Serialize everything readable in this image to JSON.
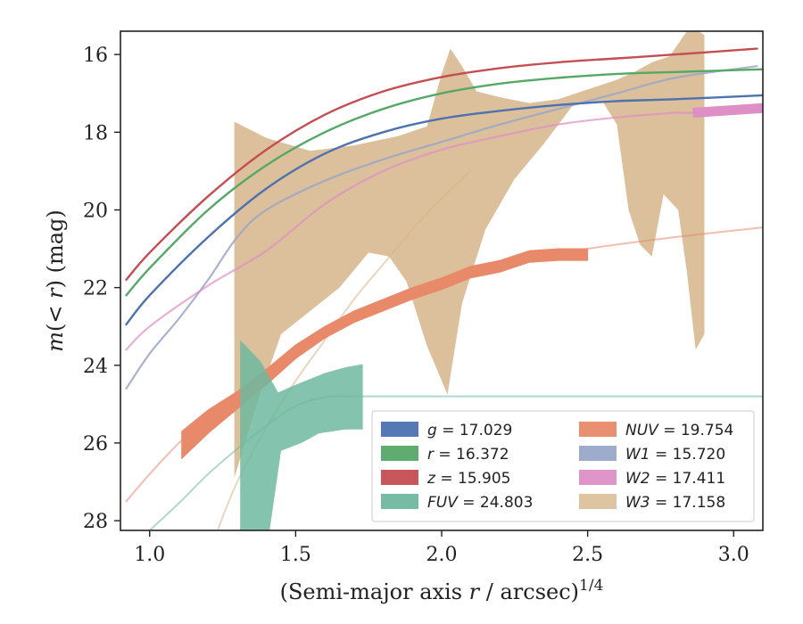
{
  "chart_data": {
    "type": "line",
    "xlabel": "(Semi-major axis r / arcsec)^1/4",
    "ylabel": "m(< r) (mag)",
    "xlim": [
      0.9,
      3.1
    ],
    "ylim": [
      28.25,
      15.4
    ],
    "y_inverted": true,
    "xticks": [
      "1.0",
      "1.5",
      "2.0",
      "2.5",
      "3.0"
    ],
    "yticks": [
      "16",
      "18",
      "20",
      "22",
      "24",
      "26",
      "28"
    ],
    "grid": false,
    "legend_position": "lower-right",
    "legend_columns": 2,
    "legend": [
      {
        "band": "g",
        "text": "= 17.029",
        "color": "#4c72b0",
        "italic": true
      },
      {
        "band": "r",
        "text": "= 16.372",
        "color": "#55a868",
        "italic": true
      },
      {
        "band": "z",
        "text": "= 15.905",
        "color": "#c44e52",
        "italic": true
      },
      {
        "band": "FUV",
        "text": "= 24.803",
        "color": "#6fb89f",
        "italic": true
      },
      {
        "band": "NUV",
        "text": "= 19.754",
        "color": "#e8896a",
        "italic": true
      },
      {
        "band": "W1",
        "text": "= 15.720",
        "color": "#9aa6c8",
        "italic": true
      },
      {
        "band": "W2",
        "text": "= 17.411",
        "color": "#dd8fc6",
        "italic": true
      },
      {
        "band": "W3",
        "text": "= 17.158",
        "color": "#d6b589",
        "italic": true
      }
    ],
    "series": [
      {
        "name": "W3",
        "color": "#d6b589",
        "band_upper": [
          [
            1.29,
            17.73
          ],
          [
            1.4,
            18.15
          ],
          [
            1.55,
            18.48
          ],
          [
            1.7,
            18.34
          ],
          [
            1.85,
            18.1
          ],
          [
            1.95,
            17.85
          ],
          [
            2.0,
            16.5
          ],
          [
            2.03,
            15.85
          ],
          [
            2.07,
            16.3
          ],
          [
            2.12,
            16.95
          ],
          [
            2.2,
            17.1
          ],
          [
            2.3,
            17.25
          ],
          [
            2.4,
            17.15
          ],
          [
            2.5,
            16.9
          ],
          [
            2.6,
            16.65
          ],
          [
            2.66,
            16.45
          ],
          [
            2.72,
            16.2
          ],
          [
            2.78,
            16.05
          ],
          [
            2.84,
            15.4
          ],
          [
            2.88,
            15.4
          ],
          [
            2.9,
            15.5
          ]
        ],
        "band_lower": [
          [
            2.9,
            23.2
          ],
          [
            2.87,
            23.6
          ],
          [
            2.84,
            21.6
          ],
          [
            2.81,
            20.0
          ],
          [
            2.76,
            19.6
          ],
          [
            2.72,
            21.2
          ],
          [
            2.68,
            20.9
          ],
          [
            2.64,
            20.0
          ],
          [
            2.6,
            17.8
          ],
          [
            2.55,
            17.2
          ],
          [
            2.45,
            17.3
          ],
          [
            2.35,
            18.3
          ],
          [
            2.25,
            19.2
          ],
          [
            2.15,
            20.5
          ],
          [
            2.07,
            22.4
          ],
          [
            2.02,
            24.75
          ],
          [
            1.95,
            23.5
          ],
          [
            1.88,
            21.85
          ],
          [
            1.82,
            21.2
          ],
          [
            1.75,
            21.1
          ],
          [
            1.65,
            22.0
          ],
          [
            1.55,
            22.6
          ],
          [
            1.45,
            23.2
          ],
          [
            1.38,
            24.7
          ],
          [
            1.33,
            25.9
          ],
          [
            1.29,
            26.9
          ]
        ]
      },
      {
        "name": "W3-extrapolation",
        "color": "#d6b589",
        "x": [
          1.23,
          1.3,
          1.4,
          1.5,
          1.6,
          1.7,
          1.8,
          1.9,
          2.0,
          2.1
        ],
        "y": [
          28.3,
          27.0,
          25.6,
          24.4,
          23.35,
          22.3,
          21.4,
          20.5,
          19.7,
          19.0
        ]
      },
      {
        "name": "NUV-extrapolation",
        "color": "#e8896a",
        "x": [
          0.92,
          1.0,
          1.1,
          1.2,
          1.3,
          1.4,
          1.5,
          1.6,
          1.8,
          2.0,
          2.2,
          2.5,
          2.8,
          3.1
        ],
        "y": [
          27.5,
          26.8,
          26.0,
          25.3,
          24.75,
          24.15,
          23.55,
          23.1,
          22.35,
          21.8,
          21.4,
          21.0,
          20.7,
          20.45
        ]
      },
      {
        "name": "NUV",
        "color": "#e8896a",
        "x": [
          1.11,
          1.2,
          1.3,
          1.4,
          1.5,
          1.6,
          1.7,
          1.8,
          1.9,
          2.0,
          2.1,
          2.2,
          2.3,
          2.4,
          2.5
        ],
        "y": [
          26.05,
          25.45,
          24.9,
          24.3,
          23.65,
          23.15,
          22.75,
          22.45,
          22.15,
          21.9,
          21.6,
          21.45,
          21.2,
          21.15,
          21.15
        ],
        "width": [
          0.7,
          0.6,
          0.45,
          0.4,
          0.35,
          0.3,
          0.3,
          0.3,
          0.3,
          0.3,
          0.3,
          0.3,
          0.3,
          0.3,
          0.3
        ]
      },
      {
        "name": "FUV-extrapolation",
        "color": "#6fb89f",
        "x": [
          1.0,
          1.1,
          1.2,
          1.3,
          1.4,
          1.5,
          1.6,
          1.7,
          2.0,
          2.5,
          3.1
        ],
        "y": [
          28.25,
          27.55,
          26.8,
          26.15,
          25.55,
          25.05,
          24.82,
          24.8,
          24.8,
          24.8,
          24.8
        ]
      },
      {
        "name": "FUV",
        "color": "#6fb89f",
        "band_upper": [
          [
            1.31,
            23.35
          ],
          [
            1.38,
            23.9
          ],
          [
            1.44,
            24.7
          ],
          [
            1.5,
            24.5
          ],
          [
            1.6,
            24.2
          ],
          [
            1.67,
            24.05
          ],
          [
            1.73,
            23.97
          ]
        ],
        "band_lower": [
          [
            1.73,
            25.65
          ],
          [
            1.67,
            25.65
          ],
          [
            1.58,
            25.75
          ],
          [
            1.52,
            26.0
          ],
          [
            1.45,
            26.2
          ],
          [
            1.41,
            28.3
          ],
          [
            1.31,
            28.3
          ]
        ]
      },
      {
        "name": "W1",
        "color": "#9aa6c8",
        "x": [
          0.92,
          1.0,
          1.1,
          1.2,
          1.3,
          1.4,
          1.6,
          1.8,
          2.0,
          2.2,
          2.4,
          2.6,
          2.8,
          3.08
        ],
        "y": [
          24.6,
          23.7,
          22.8,
          21.8,
          20.7,
          20.0,
          19.25,
          18.7,
          18.25,
          17.8,
          17.4,
          17.0,
          16.6,
          16.3
        ]
      },
      {
        "name": "W2",
        "color": "#dd8fc6",
        "x": [
          0.92,
          1.0,
          1.2,
          1.4,
          1.6,
          1.8,
          2.0,
          2.2,
          2.4,
          2.6,
          2.8,
          2.86,
          3.1
        ],
        "y": [
          23.6,
          23.0,
          21.95,
          21.05,
          19.85,
          19.0,
          18.45,
          18.1,
          17.8,
          17.62,
          17.5,
          17.5,
          17.38
        ]
      },
      {
        "name": "g",
        "color": "#4c72b0",
        "x": [
          0.92,
          1.0,
          1.2,
          1.4,
          1.6,
          1.8,
          2.0,
          2.2,
          2.4,
          2.6,
          2.8,
          3.1
        ],
        "y": [
          22.95,
          22.2,
          20.7,
          19.45,
          18.55,
          18.0,
          17.65,
          17.45,
          17.3,
          17.2,
          17.15,
          17.05
        ]
      },
      {
        "name": "r",
        "color": "#55a868",
        "x": [
          0.92,
          1.0,
          1.2,
          1.4,
          1.6,
          1.8,
          2.0,
          2.2,
          2.4,
          2.6,
          2.8,
          3.1
        ],
        "y": [
          22.2,
          21.5,
          20.0,
          18.85,
          18.0,
          17.4,
          17.0,
          16.75,
          16.6,
          16.5,
          16.45,
          16.38
        ]
      },
      {
        "name": "z",
        "color": "#c44e52",
        "x": [
          0.92,
          1.0,
          1.2,
          1.4,
          1.6,
          1.8,
          2.0,
          2.2,
          2.4,
          2.6,
          2.8,
          3.08
        ],
        "y": [
          21.8,
          21.1,
          19.65,
          18.45,
          17.55,
          16.95,
          16.58,
          16.35,
          16.2,
          16.1,
          16.0,
          15.85
        ]
      }
    ]
  }
}
